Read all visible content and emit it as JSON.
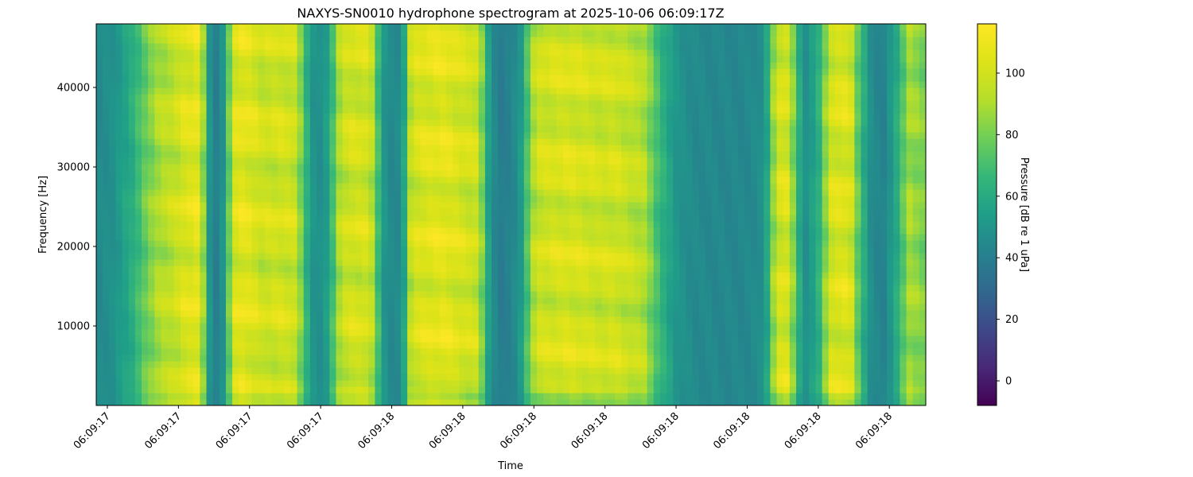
{
  "chart_data": {
    "type": "heatmap",
    "title": "NAXYS-SN0010 hydrophone spectrogram at 2025-10-06 06:09:17Z",
    "xlabel": "Time",
    "ylabel": "Frequency [Hz]",
    "ylim": [
      0,
      48000
    ],
    "yticks": [
      10000,
      20000,
      30000,
      40000
    ],
    "xlim": [
      0,
      1
    ],
    "xticks": [
      {
        "pos": 0.0134,
        "label": "06:09:17"
      },
      {
        "pos": 0.0991,
        "label": "06:09:17"
      },
      {
        "pos": 0.1848,
        "label": "06:09:17"
      },
      {
        "pos": 0.2705,
        "label": "06:09:17"
      },
      {
        "pos": 0.3562,
        "label": "06:09:18"
      },
      {
        "pos": 0.4419,
        "label": "06:09:18"
      },
      {
        "pos": 0.5276,
        "label": "06:09:18"
      },
      {
        "pos": 0.6133,
        "label": "06:09:18"
      },
      {
        "pos": 0.699,
        "label": "06:09:18"
      },
      {
        "pos": 0.7847,
        "label": "06:09:18"
      },
      {
        "pos": 0.8704,
        "label": "06:09:18"
      },
      {
        "pos": 0.9561,
        "label": "06:09:18"
      }
    ],
    "colorbar": {
      "label": "Pressure [dB re 1 uPa]",
      "range": [
        -8,
        116
      ],
      "ticks": [
        0,
        20,
        40,
        60,
        80,
        100
      ],
      "colormap": "viridis"
    },
    "time_profile": {
      "x": [
        0,
        0.02,
        0.045,
        0.06,
        0.075,
        0.095,
        0.105,
        0.115,
        0.125,
        0.135,
        0.145,
        0.155,
        0.165,
        0.175,
        0.185,
        0.2,
        0.225,
        0.24,
        0.255,
        0.265,
        0.28,
        0.295,
        0.31,
        0.33,
        0.345,
        0.36,
        0.37,
        0.38,
        0.4,
        0.42,
        0.445,
        0.46,
        0.475,
        0.49,
        0.51,
        0.53,
        0.55,
        0.57,
        0.59,
        0.61,
        0.625,
        0.64,
        0.66,
        0.68,
        0.7,
        0.72,
        0.75,
        0.78,
        0.8,
        0.81,
        0.82,
        0.835,
        0.845,
        0.855,
        0.87,
        0.885,
        0.9,
        0.91,
        0.92,
        0.935,
        0.95,
        0.965,
        0.98,
        1.0
      ],
      "db": [
        45,
        48,
        62,
        78,
        90,
        96,
        102,
        104,
        108,
        52,
        40,
        52,
        102,
        106,
        104,
        98,
        100,
        98,
        60,
        45,
        55,
        96,
        100,
        100,
        52,
        42,
        52,
        100,
        104,
        106,
        100,
        98,
        48,
        38,
        48,
        98,
        100,
        102,
        100,
        98,
        100,
        96,
        92,
        65,
        50,
        45,
        44,
        44,
        46,
        60,
        100,
        102,
        64,
        48,
        60,
        100,
        104,
        100,
        70,
        45,
        42,
        60,
        88,
        80
      ]
    }
  }
}
